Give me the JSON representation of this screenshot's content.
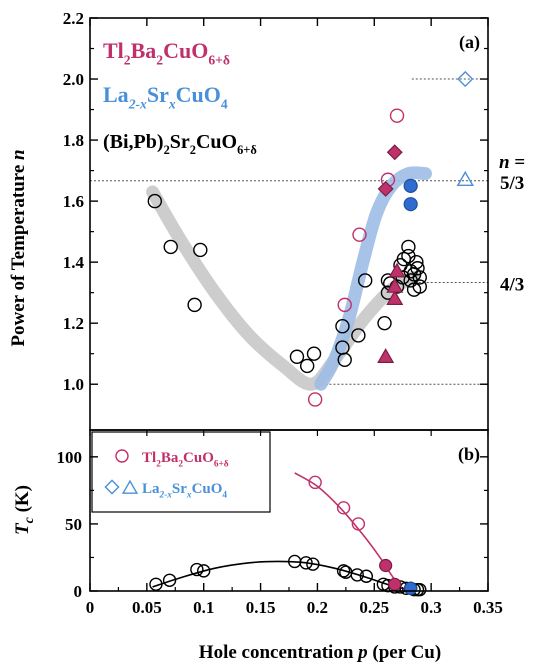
{
  "chart_data": [
    {
      "panel": "(a)",
      "type": "scatter",
      "xlabel_main": "Hole concentration ",
      "xlabel_var": "p",
      "xlabel_unit": " (per Cu)",
      "ylabel_main": "Power of Temperature ",
      "ylabel_var": "n",
      "xlim": [
        0,
        0.35
      ],
      "ylim": [
        0.85,
        2.2
      ],
      "yticks": [
        1.0,
        1.2,
        1.4,
        1.6,
        1.8,
        2.0,
        2.2
      ],
      "xticks": [
        0,
        0.05,
        0.1,
        0.15,
        0.2,
        0.25,
        0.3,
        0.35
      ],
      "xtick_labels": [
        "0",
        "0.05",
        "0.1",
        "0.15",
        "0.2",
        "0.25",
        "0.3",
        "0.35"
      ],
      "legend": [
        {
          "base": "Tl",
          "s1": "2",
          "m1": "Ba",
          "s2": "2",
          "m2": "CuO",
          "s3": "6+δ",
          "color": "#c0306a"
        },
        {
          "base": "La",
          "s1": "2-x",
          "m1": "Sr",
          "s2": "x",
          "m2": "CuO",
          "s3": "4",
          "color": "#4a90d9"
        },
        {
          "base": "(Bi,Pb)",
          "s1": "2",
          "m1": "Sr",
          "s2": "2",
          "m2": "CuO",
          "s3": "6+δ",
          "color": "#000000"
        }
      ],
      "reference_lines": [
        {
          "y": 1.0,
          "label": ""
        },
        {
          "y": 1.3333,
          "label": "4/3"
        },
        {
          "y": 1.6667,
          "label": "5/3"
        },
        {
          "y": 2.0,
          "label": ""
        }
      ],
      "n_equals_label": "n =",
      "guide_curves": [
        {
          "name": "gray",
          "color": "#c8c8c8",
          "points": [
            [
              0.055,
              1.63
            ],
            [
              0.08,
              1.47
            ],
            [
              0.11,
              1.3
            ],
            [
              0.14,
              1.16
            ],
            [
              0.17,
              1.06
            ],
            [
              0.195,
              1.0
            ],
            [
              0.215,
              1.08
            ],
            [
              0.24,
              1.21
            ],
            [
              0.265,
              1.31
            ],
            [
              0.285,
              1.35
            ]
          ]
        },
        {
          "name": "blue",
          "color": "#9ebde6",
          "points": [
            [
              0.203,
              1.0
            ],
            [
              0.215,
              1.08
            ],
            [
              0.228,
              1.22
            ],
            [
              0.24,
              1.4
            ],
            [
              0.252,
              1.56
            ],
            [
              0.265,
              1.65
            ],
            [
              0.28,
              1.69
            ],
            [
              0.295,
              1.69
            ]
          ]
        }
      ],
      "series": [
        {
          "name": "bi_open",
          "marker": "circle",
          "color": "#000000",
          "filled": false,
          "points": [
            [
              0.057,
              1.6
            ],
            [
              0.071,
              1.45
            ],
            [
              0.092,
              1.26
            ],
            [
              0.097,
              1.44
            ],
            [
              0.182,
              1.09
            ],
            [
              0.191,
              1.06
            ],
            [
              0.197,
              1.1
            ],
            [
              0.222,
              1.19
            ],
            [
              0.222,
              1.12
            ],
            [
              0.224,
              1.08
            ],
            [
              0.236,
              1.16
            ],
            [
              0.242,
              1.34
            ],
            [
              0.259,
              1.2
            ],
            [
              0.262,
              1.3
            ],
            [
              0.262,
              1.34
            ],
            [
              0.264,
              1.33
            ],
            [
              0.27,
              1.32
            ],
            [
              0.273,
              1.39
            ],
            [
              0.275,
              1.35
            ],
            [
              0.276,
              1.41
            ],
            [
              0.28,
              1.45
            ],
            [
              0.28,
              1.42
            ],
            [
              0.282,
              1.37
            ],
            [
              0.282,
              1.34
            ],
            [
              0.285,
              1.36
            ],
            [
              0.285,
              1.31
            ],
            [
              0.287,
              1.4
            ],
            [
              0.288,
              1.38
            ],
            [
              0.29,
              1.35
            ],
            [
              0.29,
              1.32
            ]
          ]
        },
        {
          "name": "tl_open",
          "marker": "circle",
          "color": "#c0306a",
          "filled": false,
          "points": [
            [
              0.198,
              0.95
            ],
            [
              0.224,
              1.26
            ],
            [
              0.237,
              1.49
            ],
            [
              0.262,
              1.67
            ],
            [
              0.27,
              1.88
            ]
          ]
        },
        {
          "name": "tl_triangle",
          "marker": "triangle",
          "color": "#c0306a",
          "filled": true,
          "points": [
            [
              0.26,
              1.09
            ],
            [
              0.268,
              1.28
            ],
            [
              0.268,
              1.32
            ],
            [
              0.27,
              1.37
            ]
          ]
        },
        {
          "name": "tl_diamond",
          "marker": "diamond",
          "color": "#c0306a",
          "filled": true,
          "points": [
            [
              0.26,
              1.64
            ],
            [
              0.268,
              1.76
            ]
          ]
        },
        {
          "name": "la_filled",
          "marker": "circle",
          "color": "#2f6bd0",
          "filled": true,
          "points": [
            [
              0.282,
              1.65
            ],
            [
              0.282,
              1.59
            ]
          ]
        },
        {
          "name": "la_diamond_open",
          "marker": "diamond",
          "color": "#4a90d9",
          "filled": false,
          "points": [
            [
              0.33,
              2.0
            ]
          ]
        },
        {
          "name": "la_triangle_open",
          "marker": "triangle",
          "color": "#4a90d9",
          "filled": false,
          "points": [
            [
              0.33,
              1.67
            ]
          ]
        }
      ]
    },
    {
      "panel": "(b)",
      "type": "scatter",
      "ylabel_main": "T",
      "ylabel_sub": "c",
      "ylabel_unit": " (K)",
      "xlim": [
        0,
        0.35
      ],
      "ylim": [
        0,
        120
      ],
      "yticks": [
        0,
        50,
        100
      ],
      "legend": [
        {
          "base": "Tl",
          "s1": "2",
          "m1": "Ba",
          "s2": "2",
          "m2": "CuO",
          "s3": "6+δ",
          "color": "#c0306a",
          "markers": [
            "circle"
          ]
        },
        {
          "base": "La",
          "s1": "2-x",
          "m1": "Sr",
          "s2": "x",
          "m2": "CuO",
          "s3": "4",
          "color": "#4a90d9",
          "markers": [
            "diamond",
            "triangle"
          ]
        }
      ],
      "fit_curves": [
        {
          "name": "bi_dome",
          "color": "#000000",
          "points": [
            [
              0.055,
              3
            ],
            [
              0.08,
              10
            ],
            [
              0.11,
              17
            ],
            [
              0.14,
              21
            ],
            [
              0.165,
              22
            ],
            [
              0.19,
              21
            ],
            [
              0.215,
              17
            ],
            [
              0.24,
              11
            ],
            [
              0.265,
              4
            ],
            [
              0.28,
              1
            ]
          ]
        },
        {
          "name": "tl_dome",
          "color": "#c0306a",
          "points": [
            [
              0.18,
              88
            ],
            [
              0.2,
              78
            ],
            [
              0.22,
              62
            ],
            [
              0.24,
              42
            ],
            [
              0.255,
              25
            ],
            [
              0.265,
              12
            ],
            [
              0.272,
              4
            ],
            [
              0.278,
              0
            ]
          ]
        }
      ],
      "series": [
        {
          "name": "bi_open",
          "marker": "circle",
          "color": "#000000",
          "filled": false,
          "points": [
            [
              0.058,
              5
            ],
            [
              0.07,
              8
            ],
            [
              0.094,
              16
            ],
            [
              0.1,
              15
            ],
            [
              0.18,
              22
            ],
            [
              0.19,
              21
            ],
            [
              0.196,
              20
            ],
            [
              0.223,
              15
            ],
            [
              0.225,
              14
            ],
            [
              0.235,
              12
            ],
            [
              0.243,
              11
            ],
            [
              0.258,
              5
            ],
            [
              0.262,
              4
            ],
            [
              0.268,
              3
            ],
            [
              0.273,
              3
            ],
            [
              0.278,
              2
            ],
            [
              0.282,
              2
            ],
            [
              0.285,
              1
            ],
            [
              0.288,
              1
            ],
            [
              0.29,
              1
            ]
          ]
        },
        {
          "name": "tl_open",
          "marker": "circle",
          "color": "#c0306a",
          "filled": false,
          "points": [
            [
              0.198,
              81
            ],
            [
              0.223,
              62
            ],
            [
              0.236,
              50
            ]
          ]
        },
        {
          "name": "tl_filled",
          "marker": "circle",
          "color": "#c0306a",
          "filled": true,
          "points": [
            [
              0.26,
              19
            ],
            [
              0.268,
              5
            ]
          ]
        },
        {
          "name": "la_filled",
          "marker": "circle",
          "color": "#2f6bd0",
          "filled": true,
          "points": [
            [
              0.282,
              2
            ]
          ]
        }
      ]
    }
  ]
}
